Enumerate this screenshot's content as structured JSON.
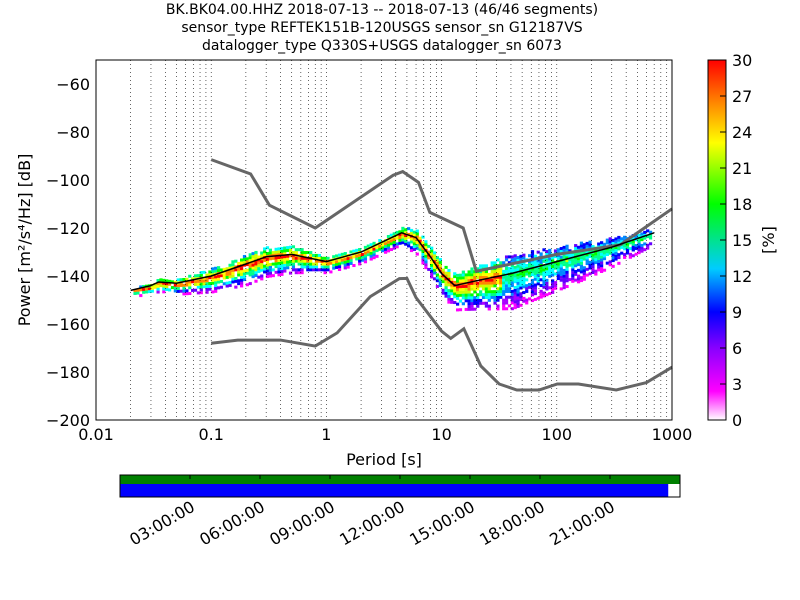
{
  "title_lines": [
    "BK.BK04.00.HHZ   2018-07-13 -- 2018-07-13  (46/46 segments)",
    "sensor_type REFTEK151B-120USGS sensor_sn G12187VS",
    "datalogger_type Q330S+USGS datalogger_sn 6073"
  ],
  "chart_data": {
    "type": "heatmap",
    "xlabel": "Period [s]",
    "ylabel": "Power [m²/s⁴/Hz] [dB]",
    "xscale": "log",
    "xlim": [
      0.01,
      1000
    ],
    "ylim": [
      -200,
      -50
    ],
    "xticks": [
      0.01,
      0.1,
      1,
      10,
      100,
      1000
    ],
    "xtick_labels": [
      "0.01",
      "0.1",
      "1",
      "10",
      "100",
      "1000"
    ],
    "yticks": [
      -200,
      -180,
      -160,
      -140,
      -120,
      -100,
      -80,
      -60
    ],
    "ytick_labels": [
      "−200",
      "−180",
      "−160",
      "−140",
      "−120",
      "−100",
      "−80",
      "−60"
    ],
    "grid": true,
    "colorbar": {
      "label": "[%]",
      "range": [
        0,
        30
      ],
      "ticks": [
        "0",
        "3",
        "6",
        "9",
        "12",
        "15",
        "18",
        "21",
        "24",
        "27",
        "30"
      ]
    },
    "nhnm": [
      [
        0.1,
        -91.5
      ],
      [
        0.22,
        -97.5
      ],
      [
        0.32,
        -110.5
      ],
      [
        0.8,
        -120
      ],
      [
        3.8,
        -98
      ],
      [
        4.6,
        -96.5
      ],
      [
        6.3,
        -101
      ],
      [
        7.9,
        -113.5
      ],
      [
        15.4,
        -120
      ],
      [
        20,
        -138
      ],
      [
        40,
        -135
      ],
      [
        100,
        -131
      ],
      [
        355,
        -127
      ],
      [
        1000,
        -112
      ]
    ],
    "nlnm": [
      [
        0.1,
        -168
      ],
      [
        0.17,
        -166.7
      ],
      [
        0.4,
        -166.7
      ],
      [
        0.8,
        -169.2
      ],
      [
        1.24,
        -163.7
      ],
      [
        2.4,
        -148.6
      ],
      [
        4.3,
        -141.1
      ],
      [
        5,
        -141
      ],
      [
        6,
        -149
      ],
      [
        10,
        -163
      ],
      [
        12,
        -166
      ],
      [
        15.6,
        -162
      ],
      [
        21.9,
        -177.5
      ],
      [
        31.6,
        -185
      ],
      [
        45,
        -187.5
      ],
      [
        70,
        -187.5
      ],
      [
        101,
        -185
      ],
      [
        154,
        -185
      ],
      [
        328,
        -187.5
      ],
      [
        600,
        -184.4
      ],
      [
        1000,
        -178
      ]
    ],
    "mode_curve": [
      [
        0.02,
        -146
      ],
      [
        0.03,
        -144
      ],
      [
        0.035,
        -142.5
      ],
      [
        0.05,
        -143
      ],
      [
        0.1,
        -140
      ],
      [
        0.2,
        -135
      ],
      [
        0.3,
        -132
      ],
      [
        0.5,
        -131
      ],
      [
        1,
        -134
      ],
      [
        2,
        -130
      ],
      [
        3,
        -126
      ],
      [
        4.5,
        -122
      ],
      [
        6,
        -124
      ],
      [
        8,
        -132
      ],
      [
        10,
        -139
      ],
      [
        13,
        -144
      ],
      [
        20,
        -142
      ],
      [
        40,
        -139
      ],
      [
        100,
        -134
      ],
      [
        300,
        -128
      ],
      [
        700,
        -122
      ]
    ],
    "spread_db": [
      [
        0.02,
        2
      ],
      [
        0.05,
        4
      ],
      [
        0.2,
        8
      ],
      [
        0.5,
        7
      ],
      [
        1,
        4
      ],
      [
        4,
        4
      ],
      [
        8,
        8
      ],
      [
        15,
        10
      ],
      [
        40,
        14
      ],
      [
        150,
        10
      ],
      [
        700,
        4
      ]
    ]
  },
  "timeline": {
    "tick_labels": [
      "03:00:00",
      "06:00:00",
      "09:00:00",
      "12:00:00",
      "15:00:00",
      "18:00:00",
      "21:00:00"
    ],
    "coverage_fraction": 0.979,
    "colors": {
      "data": "#008000",
      "gaps": "#0000ff"
    }
  }
}
